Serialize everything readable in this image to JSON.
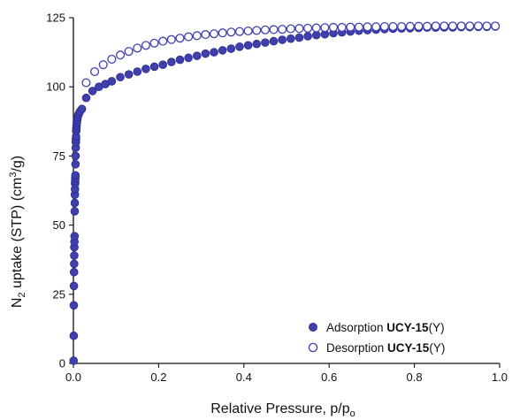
{
  "chart_data": {
    "type": "scatter",
    "xlabel_main": "Relative Pressure, p/p",
    "xlabel_sub": "o",
    "ylabel_parts": [
      "N",
      "2",
      " uptake (STP) (cm",
      "3",
      "/g)"
    ],
    "xlim": [
      0,
      1.0
    ],
    "ylim": [
      0,
      125
    ],
    "xticks": [
      0.0,
      0.2,
      0.4,
      0.6,
      0.8,
      1.0
    ],
    "xtick_labels": [
      "0.0",
      "0.2",
      "0.4",
      "0.6",
      "0.8",
      "1.0"
    ],
    "yticks": [
      0,
      25,
      50,
      75,
      100,
      125
    ],
    "ytick_labels": [
      "0",
      "25",
      "50",
      "75",
      "100",
      "125"
    ],
    "grid": false,
    "legend_position": "bottom-right",
    "colors": {
      "series": "#3f3fae"
    },
    "series": [
      {
        "name_plain": "Adsorption ",
        "name_bold": "UCY-15",
        "name_suffix": "(Y)",
        "marker": "filled-circle",
        "points": [
          [
            0.0005,
            1
          ],
          [
            0.0008,
            10
          ],
          [
            0.001,
            21
          ],
          [
            0.0012,
            28
          ],
          [
            0.0015,
            33
          ],
          [
            0.0018,
            36
          ],
          [
            0.002,
            39
          ],
          [
            0.0022,
            42
          ],
          [
            0.0025,
            44
          ],
          [
            0.0028,
            46
          ],
          [
            0.003,
            55
          ],
          [
            0.0033,
            58
          ],
          [
            0.0035,
            61
          ],
          [
            0.0038,
            63
          ],
          [
            0.004,
            65
          ],
          [
            0.0042,
            66
          ],
          [
            0.0045,
            67
          ],
          [
            0.0048,
            68
          ],
          [
            0.005,
            72
          ],
          [
            0.0052,
            75
          ],
          [
            0.0055,
            78
          ],
          [
            0.0058,
            80
          ],
          [
            0.006,
            81
          ],
          [
            0.0063,
            82
          ],
          [
            0.0066,
            84
          ],
          [
            0.007,
            85
          ],
          [
            0.0075,
            86
          ],
          [
            0.008,
            87
          ],
          [
            0.009,
            88
          ],
          [
            0.01,
            89
          ],
          [
            0.012,
            90
          ],
          [
            0.015,
            91
          ],
          [
            0.02,
            92
          ],
          [
            0.03,
            96
          ],
          [
            0.045,
            98.5
          ],
          [
            0.06,
            100
          ],
          [
            0.075,
            101
          ],
          [
            0.09,
            102
          ],
          [
            0.11,
            103.5
          ],
          [
            0.13,
            104.5
          ],
          [
            0.15,
            105.5
          ],
          [
            0.17,
            106.5
          ],
          [
            0.19,
            107.3
          ],
          [
            0.21,
            108
          ],
          [
            0.23,
            109
          ],
          [
            0.25,
            109.8
          ],
          [
            0.27,
            110.5
          ],
          [
            0.29,
            111.2
          ],
          [
            0.31,
            112
          ],
          [
            0.33,
            112.5
          ],
          [
            0.35,
            113.2
          ],
          [
            0.37,
            113.8
          ],
          [
            0.39,
            114.5
          ],
          [
            0.41,
            115
          ],
          [
            0.43,
            115.5
          ],
          [
            0.45,
            116
          ],
          [
            0.47,
            116.5
          ],
          [
            0.49,
            117
          ],
          [
            0.51,
            117.4
          ],
          [
            0.53,
            117.8
          ],
          [
            0.55,
            118.3
          ],
          [
            0.57,
            118.7
          ],
          [
            0.59,
            119
          ],
          [
            0.61,
            119.4
          ],
          [
            0.63,
            119.7
          ],
          [
            0.65,
            120
          ],
          [
            0.67,
            120.3
          ],
          [
            0.69,
            120.5
          ],
          [
            0.71,
            120.7
          ],
          [
            0.73,
            120.9
          ],
          [
            0.75,
            121
          ],
          [
            0.77,
            121.1
          ],
          [
            0.79,
            121.2
          ],
          [
            0.81,
            121.3
          ],
          [
            0.83,
            121.4
          ],
          [
            0.85,
            121.4
          ],
          [
            0.87,
            121.5
          ],
          [
            0.89,
            121.5
          ],
          [
            0.91,
            121.6
          ],
          [
            0.93,
            121.6
          ],
          [
            0.95,
            121.7
          ],
          [
            0.97,
            121.7
          ],
          [
            0.99,
            121.8
          ]
        ]
      },
      {
        "name_plain": "Desorption  ",
        "name_bold": "UCY-15",
        "name_suffix": "(Y)",
        "marker": "open-circle",
        "points": [
          [
            0.03,
            101.5
          ],
          [
            0.05,
            105.5
          ],
          [
            0.07,
            108
          ],
          [
            0.09,
            110
          ],
          [
            0.11,
            111.5
          ],
          [
            0.13,
            112.8
          ],
          [
            0.15,
            114
          ],
          [
            0.17,
            115
          ],
          [
            0.19,
            115.8
          ],
          [
            0.21,
            116.5
          ],
          [
            0.23,
            117.1
          ],
          [
            0.25,
            117.6
          ],
          [
            0.27,
            118.1
          ],
          [
            0.29,
            118.5
          ],
          [
            0.31,
            118.9
          ],
          [
            0.33,
            119.2
          ],
          [
            0.35,
            119.5
          ],
          [
            0.37,
            119.8
          ],
          [
            0.39,
            120
          ],
          [
            0.41,
            120.2
          ],
          [
            0.43,
            120.4
          ],
          [
            0.45,
            120.6
          ],
          [
            0.47,
            120.7
          ],
          [
            0.49,
            120.8
          ],
          [
            0.51,
            121
          ],
          [
            0.53,
            121.1
          ],
          [
            0.55,
            121.2
          ],
          [
            0.57,
            121.3
          ],
          [
            0.59,
            121.4
          ],
          [
            0.61,
            121.5
          ],
          [
            0.63,
            121.5
          ],
          [
            0.65,
            121.6
          ],
          [
            0.67,
            121.6
          ],
          [
            0.69,
            121.7
          ],
          [
            0.71,
            121.7
          ],
          [
            0.73,
            121.8
          ],
          [
            0.75,
            121.8
          ],
          [
            0.77,
            121.8
          ],
          [
            0.79,
            121.9
          ],
          [
            0.81,
            121.9
          ],
          [
            0.83,
            121.9
          ],
          [
            0.85,
            122
          ],
          [
            0.87,
            122
          ],
          [
            0.89,
            122
          ],
          [
            0.91,
            122
          ],
          [
            0.93,
            122
          ],
          [
            0.95,
            122
          ],
          [
            0.97,
            122
          ],
          [
            0.99,
            122
          ]
        ]
      }
    ]
  }
}
